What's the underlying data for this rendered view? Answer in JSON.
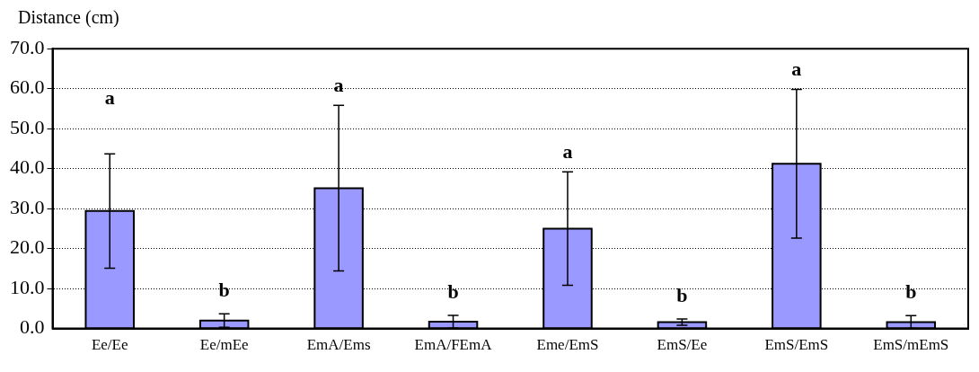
{
  "chart_data": {
    "type": "bar",
    "ylabel": "Distance (cm)",
    "categories": [
      "Ee/Ee",
      "Ee/mEe",
      "EmA/Ems",
      "EmA/FEmA",
      "Eme/EmS",
      "EmS/Ee",
      "EmS/EmS",
      "EmS/mEmS"
    ],
    "values": [
      29.4,
      2.0,
      35.1,
      1.7,
      25.0,
      1.6,
      41.2,
      1.6
    ],
    "errors": [
      14.3,
      1.7,
      20.7,
      1.6,
      14.2,
      0.8,
      18.6,
      1.6
    ],
    "color": "#9999ff",
    "ylim": [
      0,
      70
    ],
    "yticks": [
      {
        "value": 0,
        "label": "0.0"
      },
      {
        "value": 10,
        "label": "10.0"
      },
      {
        "value": 20,
        "label": "20.0"
      },
      {
        "value": 30,
        "label": "30.0"
      },
      {
        "value": 40,
        "label": "40.0"
      },
      {
        "value": 50,
        "label": "50.0"
      },
      {
        "value": 60,
        "label": "60.0"
      },
      {
        "value": 70,
        "label": "70.0"
      }
    ],
    "grid": "y",
    "annotations": [
      "a",
      "b",
      "a",
      "b",
      "a",
      "b",
      "a",
      "b"
    ]
  }
}
